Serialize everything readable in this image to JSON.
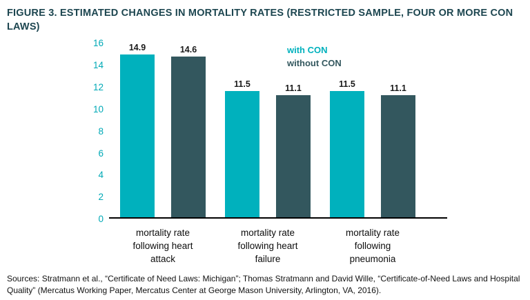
{
  "figure": {
    "title": "FIGURE 3. ESTIMATED CHANGES IN MORTALITY RATES (RESTRICTED SAMPLE, FOUR OR MORE CON LAWS)",
    "source": "Sources: Stratmann et al., “Certificate of Need Laws: Michigan”; Thomas Stratmann and David Wille, “Certificate-of-Need Laws and Hospital Quality” (Mercatus Working Paper, Mercatus Center at George Mason University, Arlington, VA, 2016)."
  },
  "chart_data": {
    "type": "bar",
    "title": "FIGURE 3. ESTIMATED CHANGES IN MORTALITY RATES (RESTRICTED SAMPLE, FOUR OR MORE CON LAWS)",
    "categories": [
      "mortality rate\nfollowing heart\nattack",
      "mortality rate\nfollowing heart\nfailure",
      "mortality rate\nfollowing\npneumonia"
    ],
    "series": [
      {
        "name": "with CON",
        "color": "#00b1bd",
        "values": [
          14.9,
          11.5,
          11.5
        ]
      },
      {
        "name": "without CON",
        "color": "#33575e",
        "values": [
          14.6,
          11.1,
          11.1
        ]
      }
    ],
    "xlabel": "",
    "ylabel": "",
    "ylim": [
      0,
      16
    ],
    "yticks": [
      0,
      2,
      4,
      6,
      8,
      10,
      12,
      14,
      16
    ],
    "grid": false,
    "legend_position": "top-center",
    "data_labels": true
  },
  "colors": {
    "with_con": "#00b1bd",
    "without_con": "#33575e",
    "title_text": "#1d4650",
    "axis_tick_text": "#00a9b6",
    "axis_line": "#000000",
    "value_label_text": "#1a1a1a",
    "background": "#ffffff"
  }
}
